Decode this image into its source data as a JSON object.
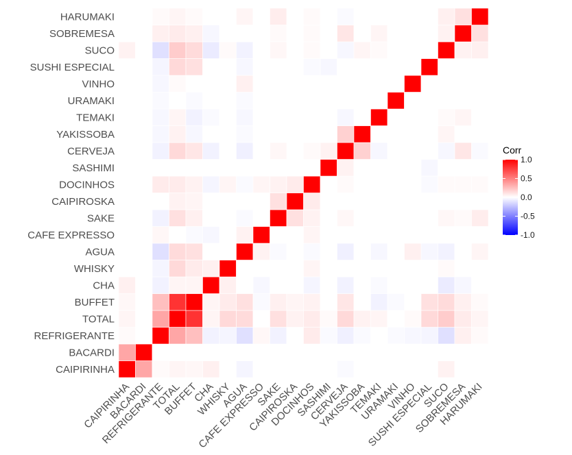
{
  "chart_data": {
    "type": "heatmap",
    "title": "",
    "xlabel": "",
    "ylabel": "",
    "variables": [
      "CAIPIRINHA",
      "BACARDI",
      "REFRIGERANTE",
      "TOTAL",
      "BUFFET",
      "CHA",
      "WHISKY",
      "AGUA",
      "CAFE EXPRESSO",
      "SAKE",
      "CAIPIROSKA",
      "DOCINHOS",
      "SASHIMI",
      "CERVEJA",
      "YAKISSOBA",
      "TEMAKI",
      "URAMAKI",
      "VINHO",
      "SUSHI ESPECIAL",
      "SUCO",
      "SOBREMESA",
      "HARUMAKI"
    ],
    "matrix": [
      [
        1,
        0.35,
        0.02,
        0.04,
        0.03,
        0.06,
        0,
        0,
        0,
        0,
        0,
        0,
        0,
        0,
        0,
        0,
        0,
        0,
        0,
        0.05,
        0,
        0
      ],
      [
        0.35,
        1,
        0,
        0,
        0,
        0,
        0,
        0,
        0,
        0,
        0,
        0,
        0,
        0,
        0,
        0,
        0,
        0,
        0,
        0,
        0,
        0
      ],
      [
        0.02,
        0,
        1,
        0.35,
        0.25,
        -0.05,
        -0.04,
        -0.12,
        0.03,
        -0.05,
        0,
        0.08,
        0,
        -0.05,
        -0.03,
        -0.03,
        -0.02,
        -0.03,
        -0.04,
        -0.12,
        0.06,
        0.02
      ],
      [
        0.04,
        0,
        0.35,
        1,
        0.8,
        0.04,
        0.15,
        0.14,
        0,
        0.12,
        0.05,
        0.08,
        0,
        0.15,
        0.05,
        0.04,
        0,
        0.02,
        0.15,
        0.2,
        0.08,
        0.04
      ],
      [
        0.03,
        0,
        0.25,
        0.8,
        1,
        0.04,
        0.08,
        0.12,
        -0.02,
        0.06,
        0.04,
        0.05,
        0,
        0.1,
        -0.03,
        -0.05,
        -0.02,
        0,
        0.12,
        0.14,
        0.06,
        0.02
      ],
      [
        0.06,
        0,
        -0.05,
        0.04,
        0.04,
        1,
        0.06,
        0,
        -0.03,
        0,
        0,
        -0.04,
        0,
        -0.05,
        0,
        -0.02,
        0,
        0,
        0,
        -0.08,
        -0.03,
        0
      ],
      [
        0,
        0,
        -0.04,
        0.15,
        0.08,
        0.06,
        1,
        0,
        0,
        0,
        0,
        0.04,
        0,
        0,
        0,
        0,
        0,
        0,
        0,
        0.02,
        0,
        0
      ],
      [
        -0.04,
        0,
        -0.12,
        0.14,
        0.12,
        0,
        0,
        1,
        0.05,
        -0.02,
        0,
        -0.02,
        0,
        -0.06,
        -0.02,
        -0.03,
        -0.02,
        0.06,
        -0.03,
        -0.05,
        0,
        0.04
      ],
      [
        0,
        0,
        0.03,
        0,
        -0.02,
        -0.03,
        0,
        0.05,
        1,
        0,
        0,
        0.04,
        0,
        0,
        0,
        0,
        0,
        0,
        0,
        0,
        0,
        0
      ],
      [
        0,
        0,
        -0.05,
        0.12,
        0.06,
        0,
        0,
        -0.02,
        0,
        1,
        0.12,
        0.05,
        0,
        0.03,
        0,
        0,
        0,
        0,
        0,
        0.03,
        0.02,
        0.07
      ],
      [
        0,
        0,
        0,
        0.05,
        0.04,
        0,
        0,
        0,
        0,
        0.12,
        1,
        0.08,
        0,
        0,
        0,
        0,
        0,
        0,
        0,
        0,
        0,
        0
      ],
      [
        0,
        0,
        0.08,
        0.08,
        0.05,
        -0.04,
        0.04,
        -0.02,
        0.04,
        0.05,
        0.08,
        1,
        0,
        0.02,
        0,
        0,
        0,
        0,
        -0.02,
        0.02,
        0.02,
        0.02
      ],
      [
        0,
        0,
        -0.02,
        0.02,
        0,
        0,
        0,
        0,
        0,
        0,
        0,
        0,
        1,
        0.05,
        0,
        0,
        0,
        0,
        -0.03,
        0,
        0,
        0
      ],
      [
        -0.02,
        0,
        -0.06,
        0.15,
        0.1,
        -0.05,
        0,
        -0.06,
        0,
        0.03,
        0,
        0.02,
        0.05,
        1,
        0.18,
        -0.03,
        0,
        0,
        0,
        -0.03,
        0.1,
        -0.02
      ],
      [
        0,
        0,
        -0.02,
        0.05,
        0,
        0,
        0,
        0,
        0,
        0,
        0,
        0,
        0,
        0.18,
        1,
        0,
        0,
        0,
        0,
        0.04,
        0,
        0
      ],
      [
        0,
        0,
        0,
        0.04,
        -0.05,
        -0.02,
        0,
        -0.03,
        0,
        0,
        0,
        0,
        0,
        -0.03,
        0,
        1,
        0,
        0,
        0,
        0.02,
        0.04,
        0
      ],
      [
        0,
        0,
        -0.02,
        0,
        -0.02,
        0,
        0,
        0,
        0,
        0,
        0,
        0,
        0,
        0,
        0,
        0,
        1,
        0,
        0,
        0,
        0,
        0
      ],
      [
        0,
        0,
        -0.03,
        0.02,
        0,
        0,
        0,
        0.06,
        0,
        0,
        0,
        0,
        0,
        0,
        0,
        0,
        0,
        1,
        0,
        0,
        0,
        0
      ],
      [
        0,
        0,
        -0.04,
        0.15,
        0.12,
        0,
        0,
        -0.03,
        0,
        0,
        0,
        -0.02,
        -0.03,
        0,
        0,
        0,
        0,
        0,
        1,
        0,
        0,
        0
      ],
      [
        0.05,
        0,
        -0.12,
        0.2,
        0.14,
        -0.08,
        0.02,
        -0.05,
        0,
        0.03,
        0,
        0.02,
        0,
        -0.03,
        0.04,
        0.02,
        0,
        0,
        0,
        1,
        0.05,
        0.06
      ],
      [
        0,
        0,
        0.06,
        0.08,
        0.06,
        -0.03,
        0,
        0,
        0,
        0.02,
        0,
        0.02,
        0,
        0.1,
        0,
        0.04,
        0,
        0,
        0,
        0.05,
        1,
        0.12
      ],
      [
        0,
        0,
        0.02,
        0.04,
        0.02,
        0,
        0,
        0.04,
        0,
        0.07,
        0,
        0.02,
        0,
        -0.02,
        0,
        0,
        0,
        0,
        0,
        0.06,
        0.12,
        1
      ]
    ],
    "zlim": [
      -1,
      1
    ],
    "legend": {
      "title": "Corr",
      "ticks": [
        1,
        0.5,
        0,
        -0.5,
        -1
      ],
      "tick_labels": [
        "1.0",
        "0.5",
        "0.0",
        "-0.5",
        "-1.0"
      ],
      "position": "right"
    },
    "colors": {
      "low": "#0000ff",
      "mid": "#ffffff",
      "high": "#ff0000"
    }
  }
}
